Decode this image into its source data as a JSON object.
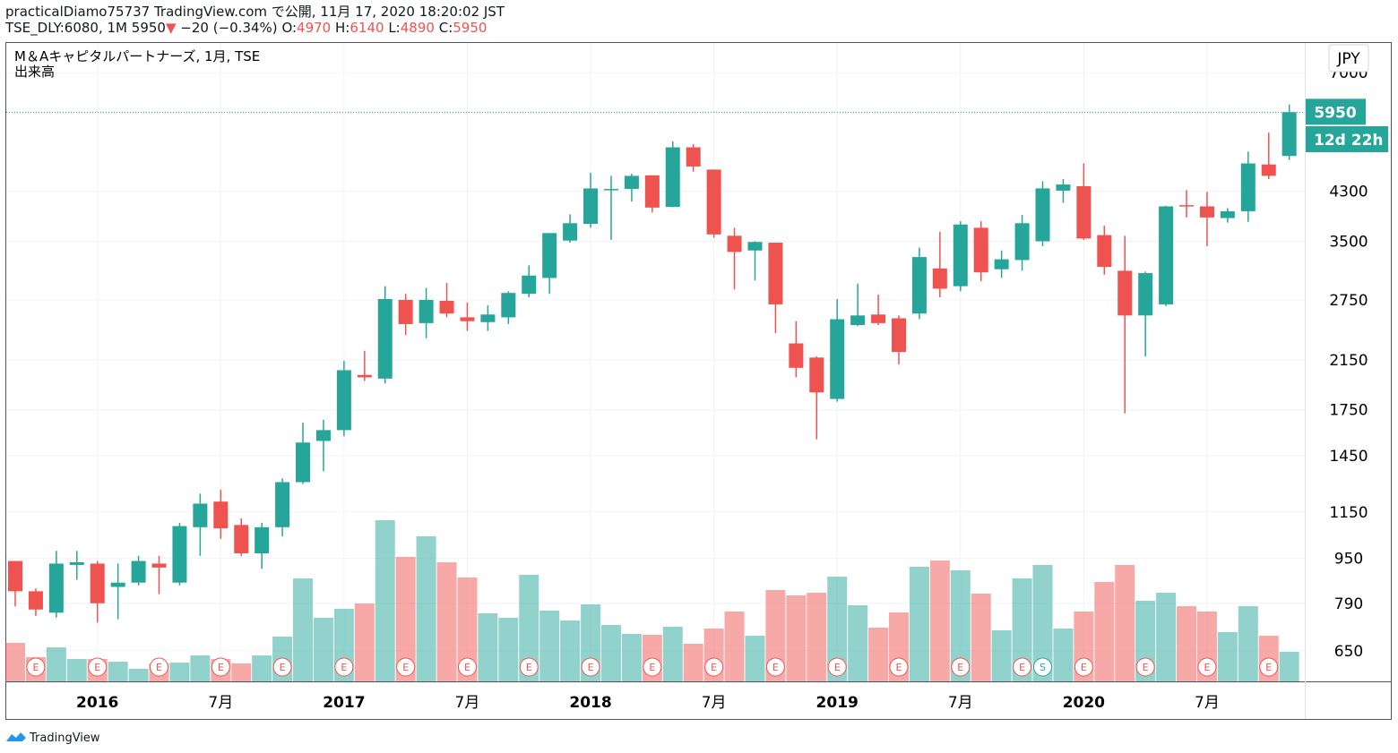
{
  "header": {
    "line1": "practicalDiamo75737 TradingView.com で公開, 11月 17, 2020 18:20:02 JST",
    "symbol": "TSE_DLY:6080, 1M",
    "arrow": "▼",
    "change": "−20 (−0.34%)",
    "o": "O:",
    "h": "H:",
    "l": "L:",
    "c": "C:"
  },
  "currency": "JPY",
  "countdown": "12d 22h",
  "footer": "TradingView",
  "chart_data": {
    "type": "candlestick",
    "title": "M＆Aキャピタルパートナーズ, 1月, TSE",
    "categories": [
      null,
      null,
      null,
      null,
      "2016",
      null,
      null,
      null,
      null,
      null,
      "7月",
      null,
      null,
      null,
      null,
      null,
      "2017",
      null,
      null,
      null,
      null,
      null,
      "7月",
      null,
      null,
      null,
      null,
      null,
      "2018",
      null,
      null,
      null,
      null,
      null,
      "7月",
      null,
      null,
      null,
      null,
      null,
      "2019",
      null,
      null,
      null,
      null,
      null,
      "7月",
      null,
      null,
      null,
      null,
      null,
      "2020",
      null,
      null,
      null,
      null,
      null,
      "7月",
      null,
      null,
      null,
      null
    ],
    "open": [
      940,
      830,
      760,
      925,
      930,
      845,
      860,
      930,
      860,
      1080,
      1200,
      1090,
      970,
      1080,
      1300,
      1540,
      1610,
      2020,
      1990,
      2750,
      2500,
      2740,
      2560,
      2510,
      2560,
      2820,
      3010,
      3510,
      3760,
      4320,
      4340,
      4590,
      4030,
      5150,
      4700,
      3580,
      3370,
      3480,
      2300,
      2170,
      1830,
      2480,
      2590,
      2550,
      2600,
      3130,
      2910,
      3700,
      3120,
      3240,
      3500,
      4310,
      4390,
      3590,
      3100,
      2580,
      2700,
      4060,
      4040,
      3850,
      3960,
      4800,
      4970
    ],
    "high": [
      940,
      840,
      980,
      980,
      940,
      930,
      960,
      960,
      1100,
      1240,
      1260,
      1120,
      1100,
      1320,
      1660,
      1680,
      2140,
      2230,
      2910,
      2820,
      2890,
      2950,
      2720,
      2690,
      2850,
      3170,
      3620,
      3910,
      4640,
      4580,
      4620,
      4590,
      5280,
      5220,
      4700,
      3700,
      3500,
      3480,
      2520,
      2180,
      2760,
      2940,
      2810,
      2580,
      3410,
      3640,
      3800,
      3800,
      3370,
      3900,
      4480,
      4520,
      4820,
      3730,
      3580,
      3090,
      4050,
      4320,
      4290,
      4010,
      5060,
      5470,
      6140
    ],
    "low": [
      780,
      750,
      745,
      870,
      730,
      740,
      850,
      820,
      850,
      960,
      1030,
      960,
      910,
      1040,
      1290,
      1360,
      1570,
      1970,
      1950,
      2380,
      2350,
      2560,
      2420,
      2420,
      2490,
      2780,
      2820,
      3480,
      3700,
      3520,
      4120,
      3940,
      4030,
      4660,
      3550,
      2870,
      2980,
      2400,
      2000,
      1550,
      1810,
      2470,
      2480,
      2110,
      2540,
      2780,
      2850,
      2970,
      3010,
      3100,
      3430,
      4100,
      3520,
      3050,
      1725,
      2180,
      2680,
      3860,
      3430,
      3780,
      3790,
      4520,
      4890
    ],
    "close": [
      830,
      770,
      930,
      935,
      790,
      860,
      940,
      915,
      1085,
      1190,
      1075,
      970,
      1080,
      1300,
      1530,
      1610,
      2060,
      2000,
      2760,
      2490,
      2750,
      2600,
      2520,
      2590,
      2830,
      3040,
      3620,
      3770,
      4350,
      4340,
      4580,
      4020,
      5150,
      4760,
      3600,
      3350,
      3490,
      2700,
      2080,
      1880,
      2540,
      2580,
      2500,
      2220,
      3280,
      2880,
      3750,
      3080,
      3250,
      3770,
      4350,
      4420,
      3540,
      3150,
      2580,
      3070,
      4040,
      4040,
      3860,
      3960,
      4820,
      4580,
      5950
    ],
    "volume": {
      "name": "出来高",
      "values": [
        43,
        27,
        38,
        25,
        25,
        22,
        14,
        20,
        21,
        29,
        25,
        20,
        29,
        50,
        115,
        71,
        81,
        87,
        180,
        139,
        162,
        133,
        116,
        76,
        71,
        119,
        79,
        68,
        86,
        63,
        53,
        52,
        61,
        42,
        59,
        78,
        51,
        102,
        96,
        99,
        117,
        85,
        60,
        77,
        128,
        135,
        124,
        98,
        57,
        115,
        130,
        59,
        78,
        111,
        130,
        90,
        99,
        84,
        78,
        55,
        84,
        51,
        33
      ]
    },
    "events": [
      {
        "index": 1,
        "label": "E"
      },
      {
        "index": 4,
        "label": "E"
      },
      {
        "index": 7,
        "label": "E"
      },
      {
        "index": 10,
        "label": "E"
      },
      {
        "index": 13,
        "label": "E"
      },
      {
        "index": 16,
        "label": "E"
      },
      {
        "index": 19,
        "label": "E"
      },
      {
        "index": 22,
        "label": "E"
      },
      {
        "index": 25,
        "label": "E"
      },
      {
        "index": 28,
        "label": "E"
      },
      {
        "index": 31,
        "label": "E"
      },
      {
        "index": 34,
        "label": "E"
      },
      {
        "index": 37,
        "label": "E"
      },
      {
        "index": 40,
        "label": "E"
      },
      {
        "index": 43,
        "label": "E"
      },
      {
        "index": 46,
        "label": "E"
      },
      {
        "index": 49,
        "label": "E"
      },
      {
        "index": 50,
        "label": "S"
      },
      {
        "index": 52,
        "label": "E"
      },
      {
        "index": 55,
        "label": "E"
      },
      {
        "index": 58,
        "label": "E"
      },
      {
        "index": 61,
        "label": "E"
      }
    ],
    "ylim": [
      573,
      7910
    ],
    "yticks": [
      650,
      790,
      950,
      1150,
      1450,
      1750,
      2150,
      2750,
      3500,
      4300,
      7000
    ],
    "log_scale": true,
    "grid": true,
    "up_color": "#26a69a",
    "down_color": "#ef5350"
  }
}
